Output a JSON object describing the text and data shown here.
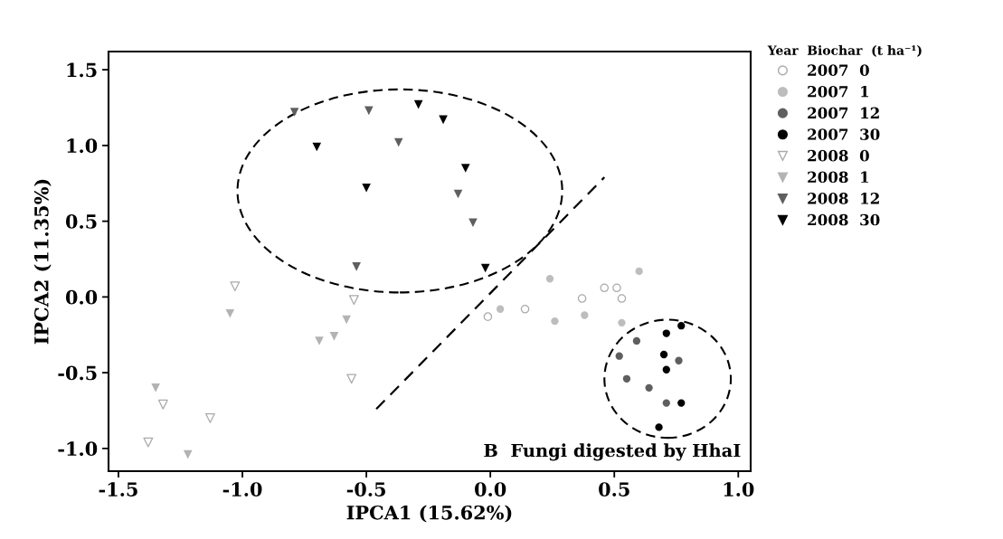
{
  "chart_data": {
    "type": "scatter",
    "xlabel": "IPCA1 (15.62%)",
    "ylabel": "IPCA2 (11.35%)",
    "legend_title": "Year  Biochar  (t ha⁻¹)",
    "annotations": [
      "B  Fungi digested by HhaI"
    ],
    "xlim": [
      -1.54,
      1.05
    ],
    "ylim": [
      -1.15,
      1.62
    ],
    "xticks": [
      {
        "value": -1.5,
        "label": "-1.5"
      },
      {
        "value": -1.0,
        "label": "-1.0"
      },
      {
        "value": -0.5,
        "label": "-0.5"
      },
      {
        "value": 0.0,
        "label": "0.0"
      },
      {
        "value": 0.5,
        "label": "0.5"
      },
      {
        "value": 1.0,
        "label": "1.0"
      }
    ],
    "yticks": [
      {
        "value": -1.0,
        "label": "-1.0"
      },
      {
        "value": -0.5,
        "label": "-0.5"
      },
      {
        "value": 0.0,
        "label": "0.0"
      },
      {
        "value": 0.5,
        "label": "0.5"
      },
      {
        "value": 1.0,
        "label": "1.0"
      },
      {
        "value": 1.5,
        "label": "1.5"
      }
    ],
    "grid": false,
    "legend": "right",
    "series": [
      {
        "name": "2007  0",
        "color": "#ffffff",
        "marker": "circle",
        "x": [
          -0.01,
          0.14,
          0.37,
          0.46,
          0.51,
          0.53
        ],
        "values": [
          -0.13,
          -0.08,
          -0.01,
          0.06,
          0.06,
          -0.01
        ]
      },
      {
        "name": "2007  1",
        "color": "#bdbdbd",
        "marker": "circle",
        "x": [
          0.04,
          0.24,
          0.26,
          0.38,
          0.53,
          0.6
        ],
        "values": [
          -0.08,
          0.12,
          -0.16,
          -0.12,
          -0.17,
          0.17
        ]
      },
      {
        "name": "2007  12",
        "color": "#5f5f5f",
        "marker": "circle",
        "x": [
          0.59,
          0.52,
          0.76,
          0.55,
          0.64,
          0.71
        ],
        "values": [
          -0.29,
          -0.39,
          -0.42,
          -0.54,
          -0.6,
          -0.7
        ]
      },
      {
        "name": "2007  30",
        "color": "#000000",
        "marker": "circle",
        "x": [
          0.77,
          0.71,
          0.7,
          0.71,
          0.77,
          0.68
        ],
        "values": [
          -0.19,
          -0.24,
          -0.38,
          -0.48,
          -0.7,
          -0.86
        ]
      },
      {
        "name": "2008  0",
        "color": "#ffffff",
        "marker": "triangle",
        "x": [
          -1.03,
          -0.55,
          -0.56,
          -1.32,
          -1.13,
          -1.38
        ],
        "values": [
          0.07,
          -0.02,
          -0.54,
          -0.71,
          -0.8,
          -0.96
        ]
      },
      {
        "name": "2008  1",
        "color": "#b3b3b3",
        "marker": "triangle",
        "x": [
          -1.05,
          -0.58,
          -0.63,
          -0.69,
          -1.35,
          -1.22
        ],
        "values": [
          -0.11,
          -0.15,
          -0.26,
          -0.29,
          -0.6,
          -1.04
        ]
      },
      {
        "name": "2008  12",
        "color": "#5f5f5f",
        "marker": "triangle",
        "x": [
          -0.79,
          -0.49,
          -0.37,
          -0.13,
          -0.07,
          -0.54
        ],
        "values": [
          1.22,
          1.23,
          1.02,
          0.68,
          0.49,
          0.2
        ]
      },
      {
        "name": "2008  30",
        "color": "#000000",
        "marker": "triangle",
        "x": [
          -0.29,
          -0.19,
          -0.7,
          -0.1,
          -0.5,
          -0.02
        ],
        "values": [
          1.27,
          1.17,
          0.99,
          0.85,
          0.72,
          0.19
        ]
      },
      {
        "type": "line",
        "color": "#000000",
        "line_style": "dashed",
        "marker": "none",
        "x": [
          -0.46,
          0.46
        ],
        "values": [
          -0.74,
          0.79
        ]
      }
    ]
  }
}
